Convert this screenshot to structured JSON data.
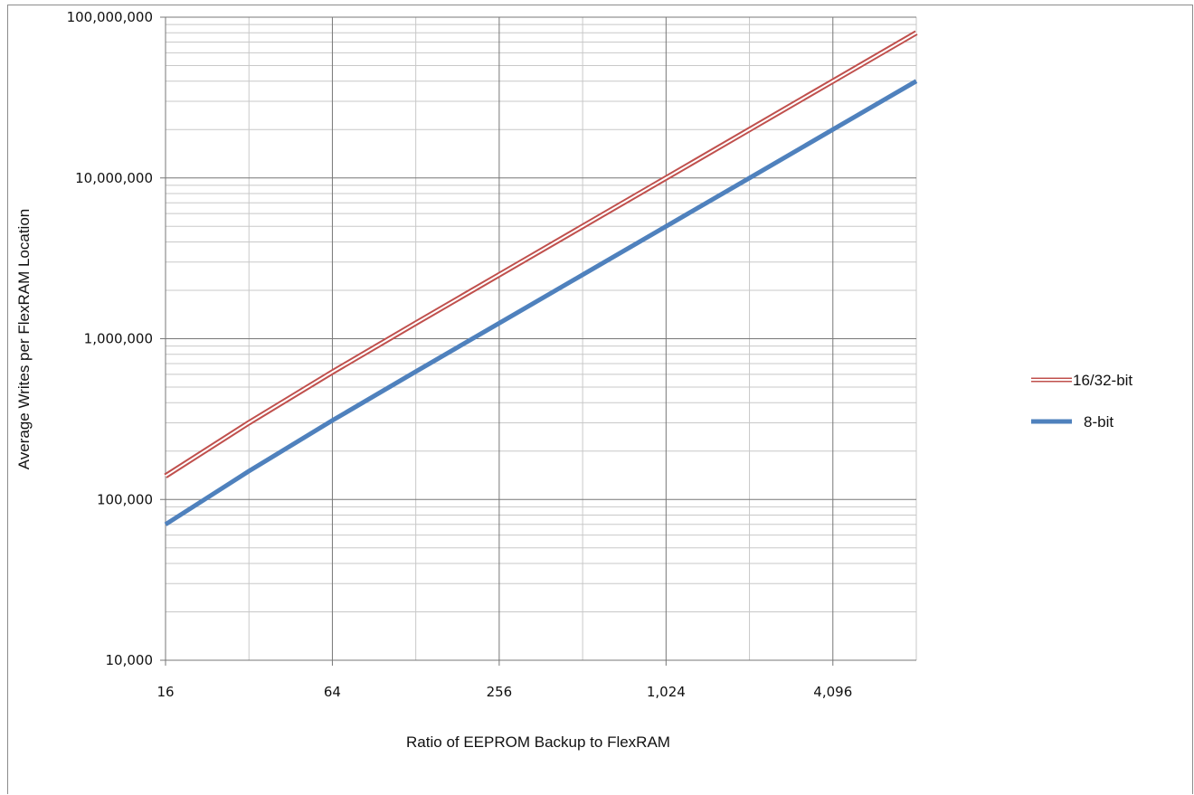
{
  "chart_data": {
    "type": "line",
    "title": "",
    "xlabel": "Ratio of EEPROM Backup to FlexRAM",
    "ylabel": "Average Writes per FlexRAM Location",
    "x_scale": "log2",
    "y_scale": "log10",
    "xlim": [
      16,
      8192
    ],
    "ylim": [
      10000,
      100000000
    ],
    "x_ticks": [
      16,
      64,
      256,
      1024,
      4096
    ],
    "x_tick_labels": [
      "16",
      "64",
      "256",
      "1,024",
      "4,096"
    ],
    "y_ticks": [
      10000,
      100000,
      1000000,
      10000000,
      100000000
    ],
    "y_tick_labels": [
      "10,000",
      "100,000",
      "1,000,000",
      "10,000,000",
      "100,000,000"
    ],
    "grid": true,
    "legend_position": "right",
    "series": [
      {
        "name": "16/32-bit",
        "color": "#c0504d",
        "style": "double-line",
        "x": [
          16,
          32,
          64,
          128,
          256,
          512,
          1024,
          2048,
          4096,
          8192
        ],
        "values": [
          140000,
          300000,
          620000,
          1250000,
          2500000,
          5000000,
          10000000,
          20000000,
          40000000,
          80000000
        ]
      },
      {
        "name": "8-bit",
        "color": "#4f81bd",
        "style": "solid-thick",
        "x": [
          16,
          32,
          64,
          128,
          256,
          512,
          1024,
          2048,
          4096,
          8192
        ],
        "values": [
          70000,
          150000,
          310000,
          625000,
          1250000,
          2500000,
          5000000,
          10000000,
          20000000,
          40000000
        ]
      }
    ]
  }
}
